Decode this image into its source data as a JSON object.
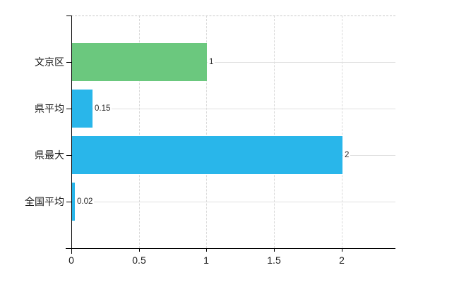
{
  "chart_data": {
    "type": "bar",
    "orientation": "horizontal",
    "title": "",
    "xlabel": "",
    "ylabel": "",
    "categories": [
      "文京区",
      "県平均",
      "県最大",
      "全国平均"
    ],
    "values": [
      1,
      0.15,
      2,
      0.02
    ],
    "value_labels": [
      "1",
      "0.15",
      "2",
      "0.02"
    ],
    "bar_colors": [
      "#6bc87e",
      "#29b6ea",
      "#29b6ea",
      "#29b6ea"
    ],
    "x_ticks": [
      0,
      0.5,
      1,
      1.5,
      2
    ],
    "x_tick_labels": [
      "0",
      "0.5",
      "1",
      "1.5",
      "2"
    ],
    "xlim": [
      0,
      2.4
    ],
    "grid": true,
    "legend": false
  },
  "colors": {
    "background": "#ffffff",
    "axis": "#000000",
    "gridline": "#e0e0e0",
    "gridline_vertical": "#d9d9d9",
    "plot_top_dashed_border": "#c8c8c8",
    "text": "#1a1a1a",
    "value_text": "#2b2b2b"
  }
}
